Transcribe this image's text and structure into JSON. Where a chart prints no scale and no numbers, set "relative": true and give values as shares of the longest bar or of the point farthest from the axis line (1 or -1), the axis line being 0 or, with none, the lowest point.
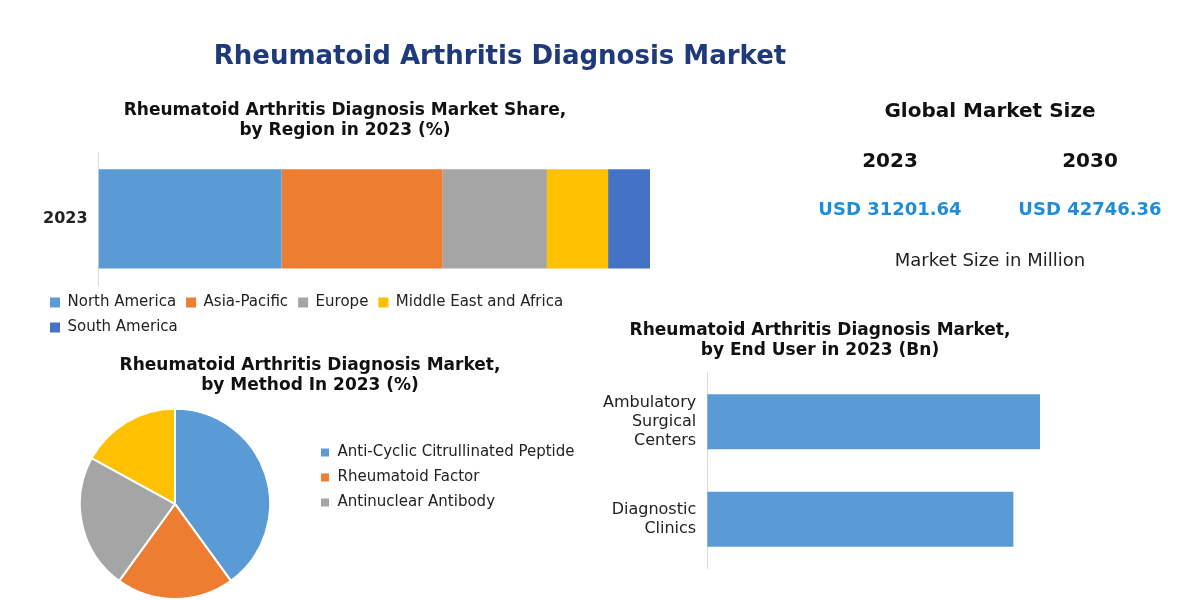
{
  "chart_data": [
    {
      "type": "bar",
      "title": "Rheumatoid Arthritis Diagnosis Market Share, by Region in 2023 (%)",
      "annotations": [
        "Rheumatoid Arthritis Diagnosis Market"
      ],
      "categories": [
        "2023"
      ],
      "orientation": "horizontal",
      "stacked": true,
      "relative": true,
      "legend": "bottom",
      "series": [
        {
          "name": "North America",
          "color": "#5b9bd5",
          "values": [
            0.332
          ]
        },
        {
          "name": "Asia-Pacific",
          "color": "#ed7d31",
          "values": [
            0.292
          ]
        },
        {
          "name": "Europe",
          "color": "#a5a5a5",
          "values": [
            0.189
          ]
        },
        {
          "name": "Middle East and Africa",
          "color": "#ffc000",
          "values": [
            0.111
          ]
        },
        {
          "name": "South America",
          "color": "#4472c4",
          "values": [
            0.076
          ]
        }
      ]
    },
    {
      "type": "other",
      "title": "Global Market Size",
      "categories": [
        "2023",
        "2030"
      ],
      "value_labels": [
        "USD 31201.64",
        "USD 42746.36"
      ],
      "annotations": [
        "Market Size in Million"
      ]
    },
    {
      "type": "pie",
      "title": "Rheumatoid Arthritis Diagnosis Market, by Method In 2023 (%)",
      "categories": [
        "Anti-Cyclic Citrullinated Peptide",
        "Rheumatoid Factor",
        "Antinuclear Antibody",
        null
      ],
      "values": [
        40,
        20,
        23,
        17
      ],
      "colors": [
        "#5b9bd5",
        "#ed7d31",
        "#a5a5a5",
        "#ffc000"
      ],
      "legend": "right"
    },
    {
      "type": "bar",
      "title": "Rheumatoid Arthritis Diagnosis Market, by End User in 2023 (Bn)",
      "categories": [
        "Ambulatory Surgical Centers",
        "Diagnostic Clinics"
      ],
      "orientation": "horizontal",
      "relative": true,
      "values": [
        1,
        0.92
      ],
      "color": "#5b9bd5"
    }
  ]
}
